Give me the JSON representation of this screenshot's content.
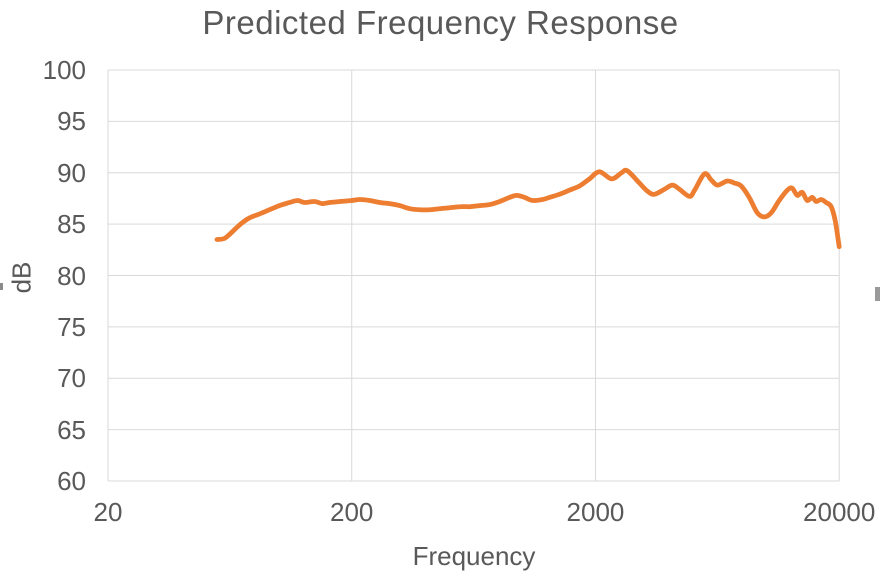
{
  "chart_data": {
    "type": "line",
    "title": "Predicted Frequency Response",
    "xlabel": "Frequency",
    "ylabel": "dB",
    "x_scale": "log",
    "xlim": [
      20,
      20000
    ],
    "ylim": [
      60,
      100
    ],
    "x_ticks": [
      20,
      200,
      2000,
      20000
    ],
    "y_ticks": [
      60,
      65,
      70,
      75,
      80,
      85,
      90,
      95,
      100
    ],
    "grid": true,
    "legend": false,
    "colors": {
      "line": "#ED7D31",
      "grid": "#D9D9D9",
      "text": "#595959",
      "background": "#FFFFFF"
    },
    "series": [
      {
        "color": "#ED7D31",
        "points": [
          [
            56,
            83.5
          ],
          [
            60,
            83.6
          ],
          [
            63,
            84.0
          ],
          [
            70,
            85.0
          ],
          [
            76,
            85.6
          ],
          [
            84,
            86.0
          ],
          [
            92,
            86.4
          ],
          [
            101,
            86.8
          ],
          [
            111,
            87.1
          ],
          [
            120,
            87.3
          ],
          [
            128,
            87.1
          ],
          [
            141,
            87.2
          ],
          [
            151,
            87.0
          ],
          [
            162,
            87.1
          ],
          [
            179,
            87.2
          ],
          [
            200,
            87.3
          ],
          [
            216,
            87.4
          ],
          [
            237,
            87.3
          ],
          [
            261,
            87.1
          ],
          [
            286,
            87.0
          ],
          [
            315,
            86.8
          ],
          [
            346,
            86.5
          ],
          [
            380,
            86.4
          ],
          [
            418,
            86.4
          ],
          [
            459,
            86.5
          ],
          [
            505,
            86.6
          ],
          [
            555,
            86.7
          ],
          [
            610,
            86.7
          ],
          [
            670,
            86.8
          ],
          [
            736,
            86.9
          ],
          [
            809,
            87.2
          ],
          [
            889,
            87.6
          ],
          [
            950,
            87.8
          ],
          [
            1024,
            87.6
          ],
          [
            1104,
            87.3
          ],
          [
            1214,
            87.4
          ],
          [
            1295,
            87.6
          ],
          [
            1423,
            87.9
          ],
          [
            1564,
            88.3
          ],
          [
            1718,
            88.7
          ],
          [
            1889,
            89.4
          ],
          [
            2076,
            90.1
          ],
          [
            2330,
            89.4
          ],
          [
            2560,
            90.0
          ],
          [
            2700,
            90.2
          ],
          [
            3030,
            89.0
          ],
          [
            3270,
            88.2
          ],
          [
            3490,
            87.9
          ],
          [
            3840,
            88.4
          ],
          [
            4140,
            88.8
          ],
          [
            4420,
            88.4
          ],
          [
            4860,
            87.7
          ],
          [
            5100,
            88.3
          ],
          [
            5600,
            89.9
          ],
          [
            5970,
            89.3
          ],
          [
            6330,
            88.8
          ],
          [
            6950,
            89.2
          ],
          [
            7430,
            89.0
          ],
          [
            7930,
            88.7
          ],
          [
            8550,
            87.6
          ],
          [
            9230,
            86.1
          ],
          [
            9860,
            85.7
          ],
          [
            10520,
            86.1
          ],
          [
            11350,
            87.3
          ],
          [
            12250,
            88.3
          ],
          [
            12820,
            88.5
          ],
          [
            13460,
            87.8
          ],
          [
            14100,
            88.1
          ],
          [
            14780,
            87.3
          ],
          [
            15500,
            87.6
          ],
          [
            16100,
            87.2
          ],
          [
            16860,
            87.4
          ],
          [
            17680,
            87.1
          ],
          [
            18540,
            86.7
          ],
          [
            19270,
            85.3
          ],
          [
            20000,
            82.8
          ]
        ]
      }
    ]
  }
}
